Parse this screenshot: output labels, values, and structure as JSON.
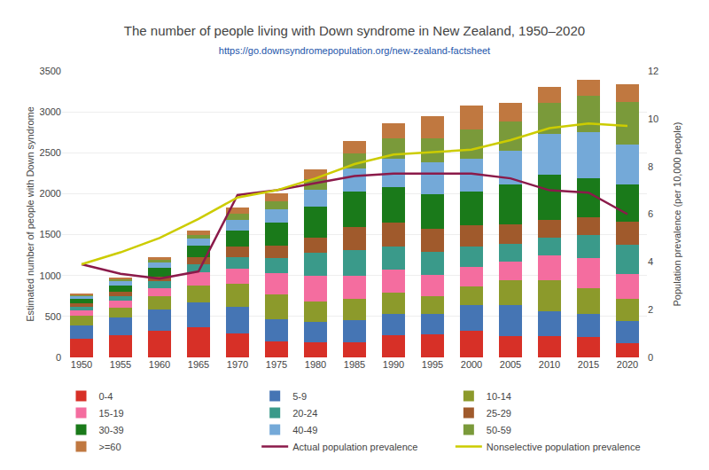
{
  "chart_data": {
    "type": "bar",
    "stacked": true,
    "title": "The number of people living with Down syndrome in New Zealand, 1950–2020",
    "subtitle": "https://go.downsyndromepopulation.org/new-zealand-factsheet",
    "ylabel": "Estimated number of people with Down syndrome",
    "y2label": "Population prevalence (per 10,000 people)",
    "categories": [
      "1950",
      "1955",
      "1960",
      "1965",
      "1970",
      "1975",
      "1980",
      "1985",
      "1990",
      "1995",
      "2000",
      "2005",
      "2010",
      "2015",
      "2020"
    ],
    "series": [
      {
        "name": "0-4",
        "color": "#d73027",
        "values": [
          230,
          270,
          320,
          370,
          290,
          200,
          185,
          180,
          270,
          280,
          330,
          260,
          255,
          250,
          175
        ]
      },
      {
        "name": "5-9",
        "color": "#4575b4",
        "values": [
          160,
          220,
          260,
          300,
          330,
          270,
          250,
          280,
          260,
          250,
          310,
          380,
          310,
          280,
          270
        ]
      },
      {
        "name": "10-14",
        "color": "#8c9a2b",
        "values": [
          120,
          120,
          170,
          210,
          280,
          300,
          250,
          260,
          260,
          220,
          230,
          300,
          380,
          310,
          270
        ]
      },
      {
        "name": "15-19",
        "color": "#f46d9f",
        "values": [
          60,
          80,
          100,
          160,
          180,
          260,
          310,
          280,
          280,
          260,
          230,
          225,
          300,
          370,
          300
        ]
      },
      {
        "name": "20-24",
        "color": "#3a9a8a",
        "values": [
          50,
          60,
          80,
          100,
          140,
          180,
          280,
          310,
          280,
          280,
          250,
          220,
          215,
          290,
          360
        ]
      },
      {
        "name": "25-29",
        "color": "#a05a2c",
        "values": [
          40,
          50,
          60,
          80,
          130,
          160,
          190,
          280,
          300,
          280,
          265,
          245,
          220,
          215,
          285
        ]
      },
      {
        "name": "30-39",
        "color": "#1a7a1a",
        "values": [
          60,
          80,
          100,
          140,
          200,
          280,
          380,
          440,
          430,
          420,
          410,
          480,
          550,
          470,
          450
        ]
      },
      {
        "name": "40-49",
        "color": "#74a9d8",
        "values": [
          30,
          50,
          70,
          90,
          130,
          160,
          200,
          280,
          350,
          390,
          400,
          420,
          500,
          570,
          490
        ]
      },
      {
        "name": "50-59",
        "color": "#7a9a3a",
        "values": [
          15,
          25,
          35,
          50,
          80,
          100,
          130,
          180,
          250,
          300,
          360,
          350,
          380,
          440,
          520
        ]
      },
      {
        "name": ">=60",
        "color": "#c07840",
        "values": [
          10,
          20,
          30,
          50,
          70,
          100,
          125,
          150,
          180,
          270,
          290,
          230,
          200,
          195,
          220
        ]
      },
      {
        "name": "Actual population prevalence",
        "type": "line",
        "axis": "y2",
        "color": "#8b1a4a",
        "values": [
          3.9,
          3.5,
          3.3,
          3.6,
          6.8,
          7.0,
          7.3,
          7.6,
          7.7,
          7.7,
          7.7,
          7.5,
          7.0,
          6.9,
          6.0
        ]
      },
      {
        "name": "Nonselective population prevalence",
        "type": "line",
        "axis": "y2",
        "color": "#cccc00",
        "values": [
          3.9,
          4.4,
          5.0,
          5.8,
          6.7,
          7.0,
          7.5,
          8.1,
          8.5,
          8.6,
          8.7,
          9.1,
          9.6,
          9.8,
          9.7
        ]
      }
    ],
    "ylim": [
      0,
      3500
    ],
    "yticks": [
      0,
      500,
      1000,
      1500,
      2000,
      2500,
      3000,
      3500
    ],
    "y2lim": [
      0,
      12
    ],
    "y2ticks": [
      0,
      2,
      4,
      6,
      8,
      10,
      12
    ],
    "grid": true,
    "legend": "bottom"
  }
}
